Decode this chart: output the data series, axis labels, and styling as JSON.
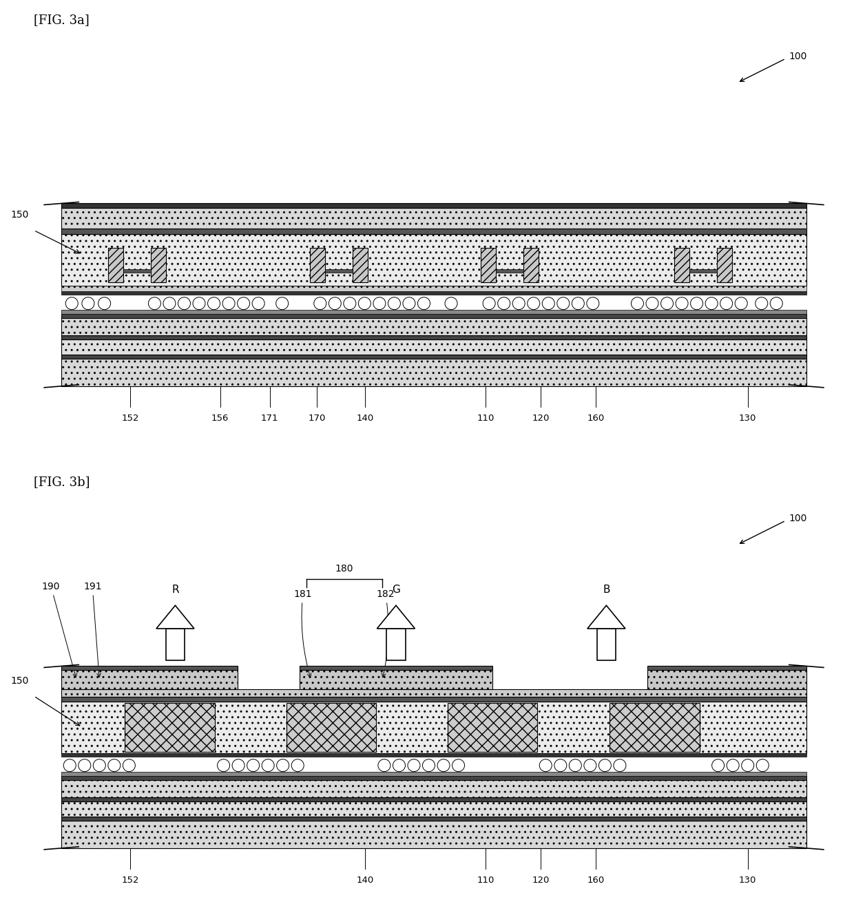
{
  "fig_title_a": "[FIG. 3a]",
  "fig_title_b": "[FIG. 3b]",
  "background": "#ffffff",
  "fig3a_labels": [
    "152",
    "156",
    "171",
    "170",
    "140",
    "110",
    "120",
    "160",
    "130"
  ],
  "fig3b_labels": [
    "152",
    "140",
    "110",
    "120",
    "160",
    "130"
  ],
  "ref_100": "100",
  "ref_150": "150",
  "dot_hatch": "..",
  "cross_hatch": "xx",
  "dot_color": "#d8d8d8",
  "cross_color": "#c8c8c8",
  "dark_color": "#444444",
  "mid_color": "#bbbbbb",
  "light_color": "#e8e8e8",
  "black": "#000000",
  "white": "#ffffff"
}
